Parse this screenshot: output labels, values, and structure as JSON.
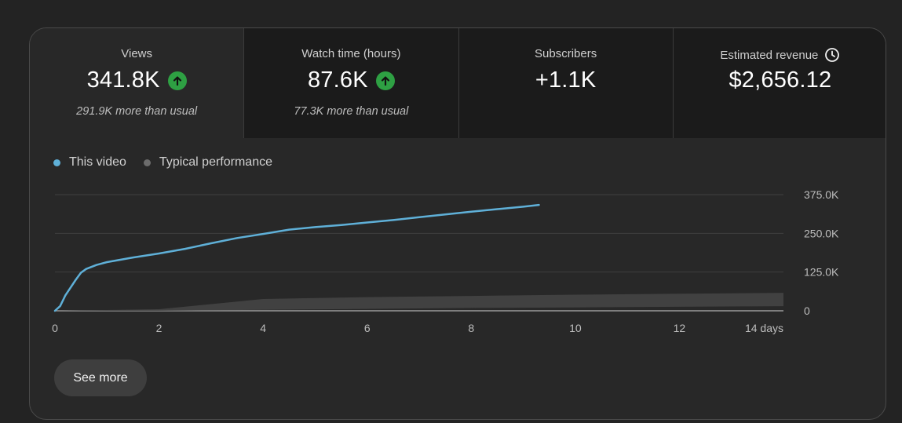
{
  "metrics": [
    {
      "label": "Views",
      "value": "341.8K",
      "trend": "up",
      "note": "291.9K more than usual"
    },
    {
      "label": "Watch time (hours)",
      "value": "87.6K",
      "trend": "up",
      "note": "77.3K more than usual"
    },
    {
      "label": "Subscribers",
      "value": "+1.1K"
    },
    {
      "label": "Estimated revenue",
      "value": "$2,656.12",
      "icon": "clock-icon"
    }
  ],
  "legend": {
    "this_video": "This video",
    "typical": "Typical performance"
  },
  "colors": {
    "this_video": "#5fb0d8",
    "typical": "#6c6c6c",
    "up": "#2ea043"
  },
  "buttons": {
    "see_more": "See more"
  },
  "chart_data": {
    "type": "area",
    "x_unit": "days",
    "xlim": [
      0,
      14
    ],
    "ylim": [
      0,
      375000
    ],
    "x_ticks": [
      "0",
      "2",
      "4",
      "6",
      "8",
      "10",
      "12",
      "14 days"
    ],
    "y_ticks": [
      "375.0K",
      "250.0K",
      "125.0K",
      "0"
    ],
    "grid": true,
    "legend_position": "top-left",
    "series": [
      {
        "name": "This video",
        "type": "line",
        "x": [
          0,
          0.1,
          0.2,
          0.3,
          0.4,
          0.5,
          0.6,
          0.8,
          1.0,
          1.5,
          2.0,
          2.5,
          3.0,
          3.5,
          4.0,
          4.5,
          5.0,
          5.5,
          6.0,
          6.5,
          7.0,
          7.5,
          8.0,
          8.5,
          9.0,
          9.3
        ],
        "y": [
          0,
          15000,
          50000,
          75000,
          100000,
          123000,
          135000,
          148000,
          157000,
          172000,
          185000,
          200000,
          218000,
          235000,
          248000,
          262000,
          270000,
          277000,
          285000,
          293000,
          302000,
          311000,
          320000,
          328000,
          336000,
          341800
        ]
      },
      {
        "name": "Typical performance",
        "type": "band",
        "x": [
          0,
          2,
          4,
          6,
          8,
          10,
          12,
          14
        ],
        "low": [
          0,
          0,
          3000,
          6000,
          9000,
          11000,
          13000,
          15000
        ],
        "high": [
          0,
          5000,
          38000,
          44000,
          48000,
          52000,
          55000,
          58000
        ]
      }
    ]
  }
}
